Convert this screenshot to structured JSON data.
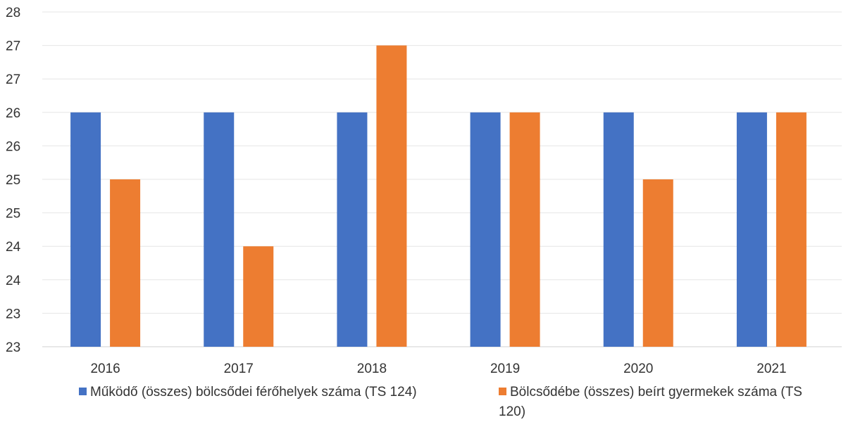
{
  "chart_data": {
    "type": "bar",
    "categories": [
      "2016",
      "2017",
      "2018",
      "2019",
      "2020",
      "2021"
    ],
    "series": [
      {
        "name": "Működő (összes) bölcsődei férőhelyek száma (TS 124)",
        "color": "#4472c4",
        "values": [
          26,
          26,
          26,
          26,
          26,
          26
        ]
      },
      {
        "name": "Bölcsődébe (összes) beírt gyermekek száma (TS 120)",
        "color": "#ed7d31",
        "values": [
          25,
          24,
          27,
          26,
          25,
          26
        ]
      }
    ],
    "y_tick_labels": [
      "23",
      "23",
      "24",
      "24",
      "25",
      "25",
      "26",
      "26",
      "27",
      "27",
      "28"
    ],
    "ylim": [
      22.5,
      27.5
    ],
    "grid": true,
    "legend_position": "bottom"
  }
}
